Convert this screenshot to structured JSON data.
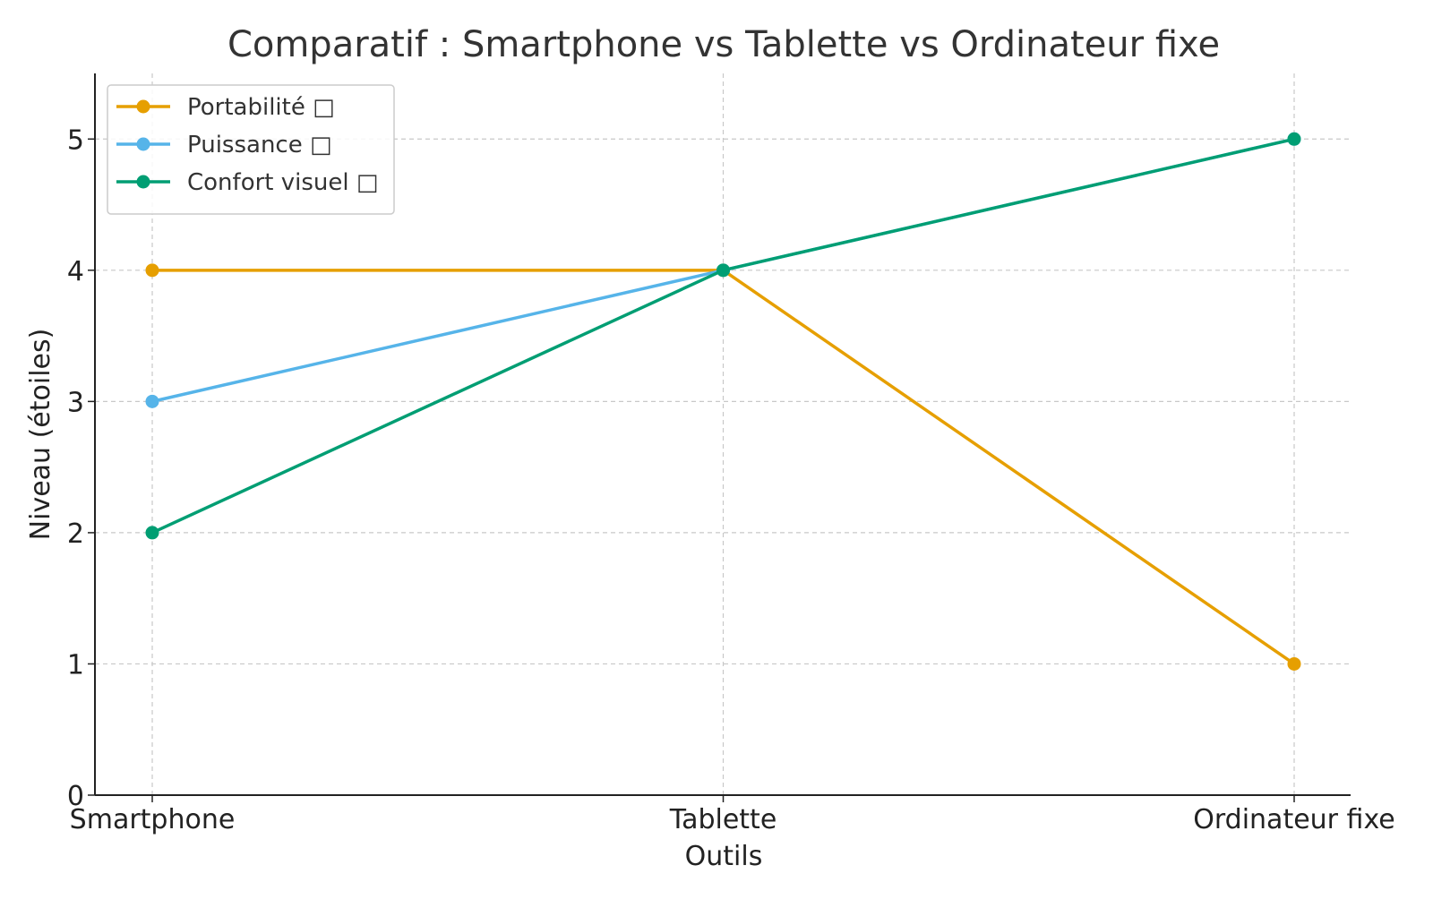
{
  "chart_data": {
    "type": "line",
    "title": "Comparatif : Smartphone vs Tablette vs Ordinateur fixe",
    "xlabel": "Outils",
    "ylabel": "Niveau (étoiles)",
    "categories": [
      "Smartphone",
      "Tablette",
      "Ordinateur fixe"
    ],
    "ylim": [
      0,
      5.5
    ],
    "yticks": [
      0,
      1,
      2,
      3,
      4,
      5
    ],
    "grid": true,
    "legend_position": "top-left",
    "series": [
      {
        "name": "Portabilité □",
        "color": "#E69F00",
        "values": [
          4,
          4,
          1
        ]
      },
      {
        "name": "Puissance □",
        "color": "#56B4E9",
        "values": [
          3,
          4,
          5
        ]
      },
      {
        "name": "Confort visuel □",
        "color": "#009E73",
        "values": [
          2,
          4,
          5
        ]
      }
    ]
  }
}
